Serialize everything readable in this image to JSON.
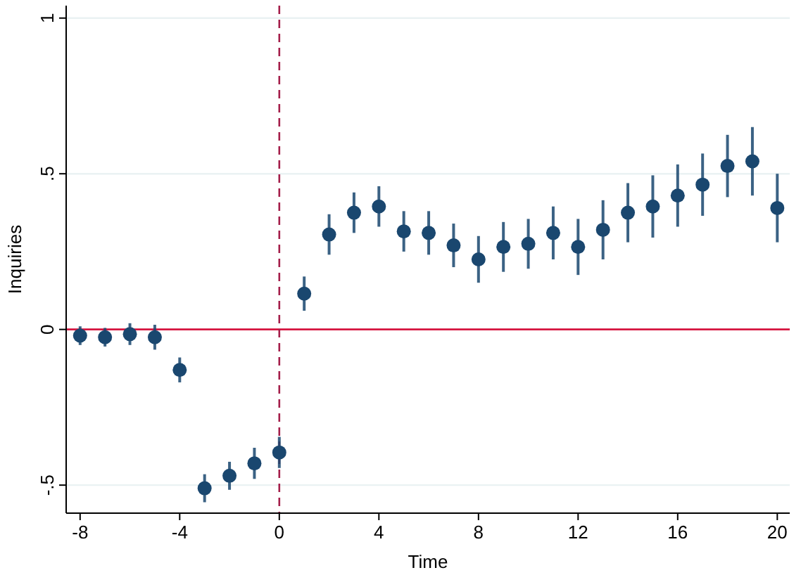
{
  "chart_data": {
    "type": "scatter",
    "xlabel": "Time",
    "ylabel": "Inquiries",
    "x": [
      -8,
      -7,
      -6,
      -5,
      -4,
      -3,
      -2,
      -1,
      0,
      1,
      2,
      3,
      4,
      5,
      6,
      7,
      8,
      9,
      10,
      11,
      12,
      13,
      14,
      15,
      16,
      17,
      18,
      19,
      20
    ],
    "series": [
      {
        "color": "#1a476f",
        "values": [
          -0.02,
          -0.025,
          -0.015,
          -0.025,
          -0.13,
          -0.51,
          -0.47,
          -0.43,
          -0.395,
          0.115,
          0.305,
          0.375,
          0.395,
          0.315,
          0.31,
          0.27,
          0.225,
          0.265,
          0.275,
          0.31,
          0.265,
          0.32,
          0.375,
          0.395,
          0.43,
          0.465,
          0.525,
          0.54,
          0.39
        ],
        "errors": [
          0.03,
          0.03,
          0.035,
          0.04,
          0.04,
          0.045,
          0.045,
          0.05,
          0.05,
          0.055,
          0.065,
          0.065,
          0.065,
          0.065,
          0.07,
          0.07,
          0.075,
          0.08,
          0.08,
          0.085,
          0.09,
          0.095,
          0.095,
          0.1,
          0.1,
          0.1,
          0.1,
          0.11,
          0.11
        ]
      }
    ],
    "xlim": [
      -8.56,
      20.5
    ],
    "xticks": [
      -8,
      -4,
      0,
      4,
      8,
      12,
      16,
      20
    ],
    "ylim": [
      -0.59,
      1.04
    ],
    "yticks": [
      {
        "value": -0.5,
        "label": "-.5"
      },
      0,
      {
        "value": 0.5,
        "label": ".5"
      },
      1
    ],
    "grid": "y",
    "marker": "circle",
    "ref_lines": [
      {
        "axis": "y",
        "value": 0,
        "color": "#d6153f",
        "line_style": "solid"
      },
      {
        "axis": "x",
        "value": 0,
        "color": "#a41e4a",
        "line_style": "dashed"
      }
    ]
  }
}
